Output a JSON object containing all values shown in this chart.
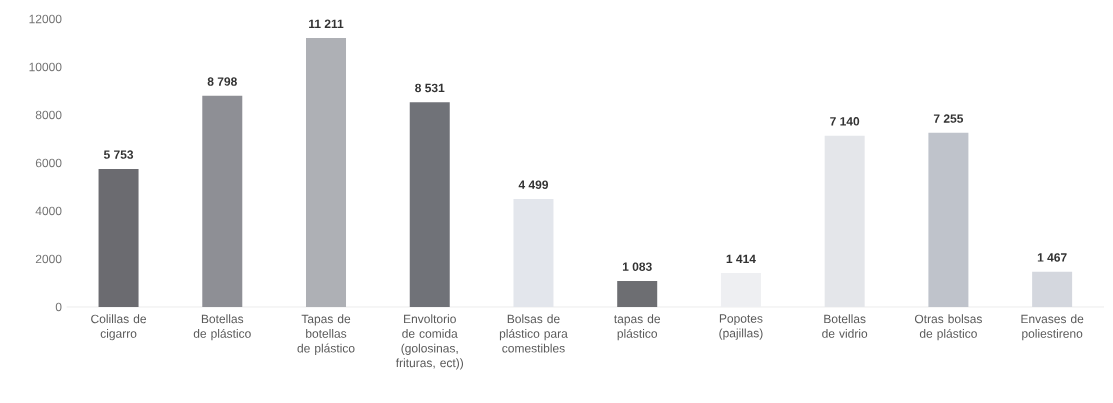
{
  "chart_data": {
    "type": "bar",
    "categories": [
      "Colillas de cigarro",
      "Botellas de plástico",
      "Tapas de botellas de plástico",
      "Envoltorio de comida (golosinas, frituras, ect))",
      "Bolsas de plástico para comestibles",
      "tapas de plástico",
      "Popotes (pajillas)",
      "Botellas de vidrio",
      "Otras bolsas de plástico",
      "Envases de poliestireno"
    ],
    "values": [
      5753,
      8798,
      11211,
      8531,
      4499,
      1083,
      1414,
      7140,
      7255,
      1467
    ],
    "value_labels": [
      "5 753",
      "8 798",
      "11 211",
      "8 531",
      "4 499",
      "1 083",
      "1 414",
      "7 140",
      "7 255",
      "1 467"
    ],
    "colors": [
      "#6b6b70",
      "#8e8f95",
      "#aeb0b5",
      "#707278",
      "#e3e6ec",
      "#6d6e72",
      "#eeeff2",
      "#e4e6ea",
      "#bfc3cb",
      "#d4d7de"
    ],
    "ylim": [
      0,
      12000
    ],
    "yticks": [
      0,
      2000,
      4000,
      6000,
      8000,
      10000,
      12000
    ],
    "grid": false
  }
}
